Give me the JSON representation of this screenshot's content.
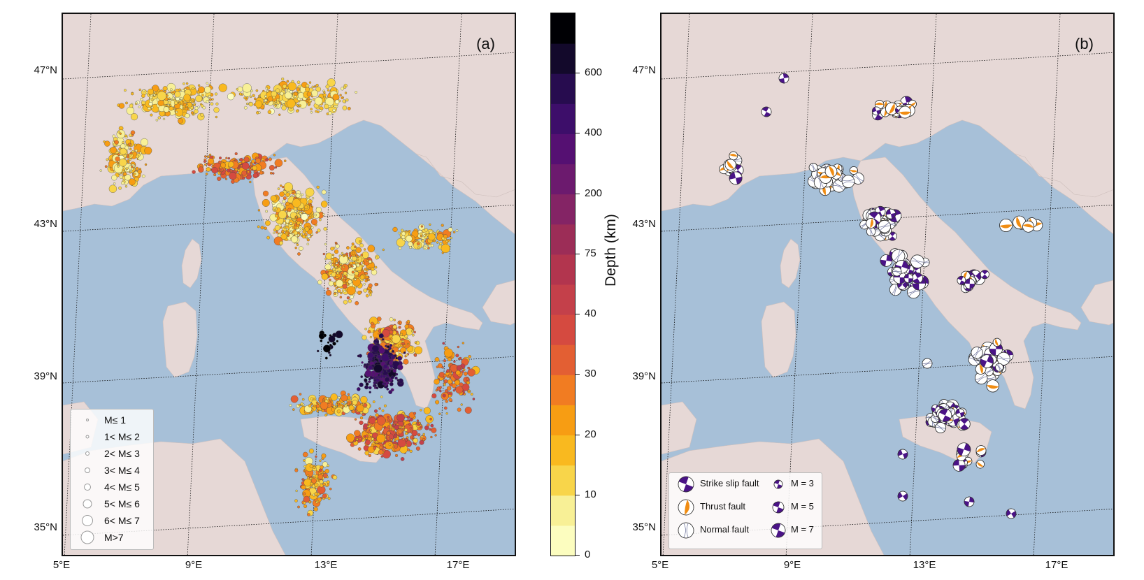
{
  "panels": {
    "a": {
      "label": "(a)"
    },
    "b": {
      "label": "(b)"
    }
  },
  "axes": {
    "lat_labels": [
      "47°N",
      "43°N",
      "39°N",
      "35°N"
    ],
    "lon_labels": [
      "5°E",
      "9°E",
      "13°E",
      "17°E"
    ]
  },
  "colorbar": {
    "label": "Depth (km)",
    "ticks": [
      "0",
      "10",
      "20",
      "30",
      "40",
      "75",
      "200",
      "400",
      "600"
    ],
    "colors": [
      "#fcfdbf",
      "#f8f096",
      "#f8d54a",
      "#f9b91f",
      "#f79d13",
      "#f17c22",
      "#e35f33",
      "#d54a40",
      "#c4404a",
      "#b2354e",
      "#9c2d57",
      "#842465",
      "#6c1a6e",
      "#551072",
      "#3d0e6a",
      "#270c4f",
      "#13092b",
      "#000004"
    ]
  },
  "magnitude_legend": {
    "items": [
      "M≤ 1",
      "1< M≤ 2",
      "2< M≤ 3",
      "3< M≤ 4",
      "4< M≤ 5",
      "5< M≤ 6",
      "6< M≤ 7",
      "M>7"
    ]
  },
  "fault_legend": {
    "types": [
      "Strike slip fault",
      "Thrust fault",
      "Normal fault"
    ],
    "magnitudes": [
      "M = 3",
      "M = 5",
      "M = 7"
    ],
    "colors": {
      "strike_slip": "#4a1386",
      "thrust": "#f08c12",
      "normal": "#d9dcef"
    }
  },
  "map_colors": {
    "sea": "#a7c0d8",
    "land": "#e6d8d6"
  }
}
